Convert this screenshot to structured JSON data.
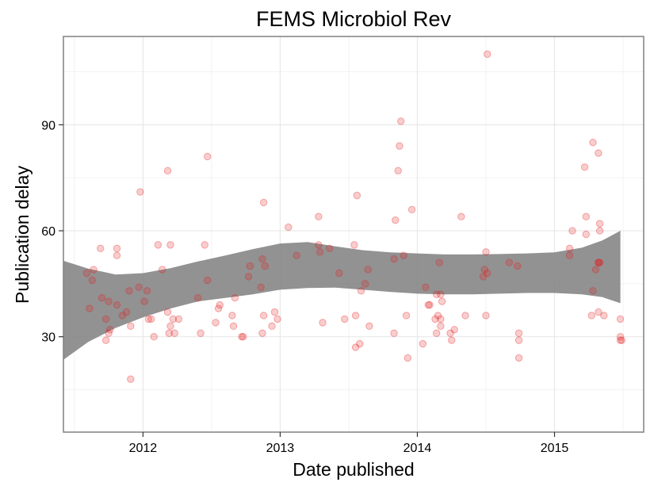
{
  "chart_data": {
    "type": "scatter",
    "title": "FEMS Microbiol Rev",
    "xlabel": "Date published",
    "ylabel": "Publication delay",
    "xlim": [
      2011.42,
      2015.65
    ],
    "ylim": [
      3,
      115
    ],
    "x_ticks": [
      2012,
      2013,
      2014,
      2015
    ],
    "x_tick_labels": [
      "2012",
      "2013",
      "2014",
      "2015"
    ],
    "y_ticks": [
      30,
      60,
      90
    ],
    "y_tick_labels": [
      "30",
      "60",
      "90"
    ],
    "grid": true,
    "point_color": "#e41a1c",
    "band_color": "#7f7f7f",
    "smooth_band": {
      "x": [
        2011.42,
        2011.6,
        2011.8,
        2012.0,
        2012.2,
        2012.4,
        2012.6,
        2012.8,
        2013.0,
        2013.2,
        2013.4,
        2013.6,
        2013.8,
        2014.0,
        2014.2,
        2014.4,
        2014.6,
        2014.8,
        2015.0,
        2015.2,
        2015.35,
        2015.48
      ],
      "upper": [
        51.5,
        49.3,
        47.6,
        48.0,
        49.4,
        51.3,
        53.0,
        54.8,
        56.4,
        56.8,
        55.6,
        54.5,
        53.9,
        53.6,
        53.3,
        53.3,
        53.4,
        53.6,
        53.9,
        55.2,
        57.3,
        60.0
      ],
      "lower": [
        23.5,
        28.5,
        32.5,
        35.5,
        38.0,
        40.0,
        41.0,
        42.0,
        43.3,
        43.8,
        43.9,
        43.3,
        42.7,
        42.2,
        42.0,
        42.0,
        42.2,
        42.4,
        42.4,
        42.0,
        41.2,
        39.5
      ]
    },
    "points": [
      {
        "x": 2011.59,
        "y": 48
      },
      {
        "x": 2011.61,
        "y": 38
      },
      {
        "x": 2011.63,
        "y": 46
      },
      {
        "x": 2011.64,
        "y": 49
      },
      {
        "x": 2011.69,
        "y": 55
      },
      {
        "x": 2011.7,
        "y": 41
      },
      {
        "x": 2011.73,
        "y": 29
      },
      {
        "x": 2011.73,
        "y": 35
      },
      {
        "x": 2011.75,
        "y": 40
      },
      {
        "x": 2011.75,
        "y": 31
      },
      {
        "x": 2011.76,
        "y": 32
      },
      {
        "x": 2011.81,
        "y": 55
      },
      {
        "x": 2011.81,
        "y": 53
      },
      {
        "x": 2011.81,
        "y": 39
      },
      {
        "x": 2011.85,
        "y": 36
      },
      {
        "x": 2011.88,
        "y": 37
      },
      {
        "x": 2011.9,
        "y": 43
      },
      {
        "x": 2011.91,
        "y": 18
      },
      {
        "x": 2011.91,
        "y": 33
      },
      {
        "x": 2011.97,
        "y": 44
      },
      {
        "x": 2011.98,
        "y": 71
      },
      {
        "x": 2012.01,
        "y": 40
      },
      {
        "x": 2012.03,
        "y": 43
      },
      {
        "x": 2012.04,
        "y": 35
      },
      {
        "x": 2012.06,
        "y": 35
      },
      {
        "x": 2012.08,
        "y": 30
      },
      {
        "x": 2012.11,
        "y": 56
      },
      {
        "x": 2012.14,
        "y": 49
      },
      {
        "x": 2012.18,
        "y": 37
      },
      {
        "x": 2012.18,
        "y": 77
      },
      {
        "x": 2012.19,
        "y": 31
      },
      {
        "x": 2012.2,
        "y": 56
      },
      {
        "x": 2012.2,
        "y": 33
      },
      {
        "x": 2012.22,
        "y": 35
      },
      {
        "x": 2012.23,
        "y": 31
      },
      {
        "x": 2012.26,
        "y": 35
      },
      {
        "x": 2012.4,
        "y": 41
      },
      {
        "x": 2012.42,
        "y": 31
      },
      {
        "x": 2012.45,
        "y": 56
      },
      {
        "x": 2012.47,
        "y": 81
      },
      {
        "x": 2012.47,
        "y": 46
      },
      {
        "x": 2012.53,
        "y": 34
      },
      {
        "x": 2012.55,
        "y": 38
      },
      {
        "x": 2012.56,
        "y": 39
      },
      {
        "x": 2012.65,
        "y": 36
      },
      {
        "x": 2012.66,
        "y": 33
      },
      {
        "x": 2012.67,
        "y": 41
      },
      {
        "x": 2012.72,
        "y": 30
      },
      {
        "x": 2012.73,
        "y": 30
      },
      {
        "x": 2012.77,
        "y": 47
      },
      {
        "x": 2012.78,
        "y": 50
      },
      {
        "x": 2012.86,
        "y": 44
      },
      {
        "x": 2012.87,
        "y": 52
      },
      {
        "x": 2012.87,
        "y": 31
      },
      {
        "x": 2012.88,
        "y": 68
      },
      {
        "x": 2012.88,
        "y": 36
      },
      {
        "x": 2012.89,
        "y": 50
      },
      {
        "x": 2012.94,
        "y": 33
      },
      {
        "x": 2012.96,
        "y": 37
      },
      {
        "x": 2012.98,
        "y": 35
      },
      {
        "x": 2013.06,
        "y": 61
      },
      {
        "x": 2013.12,
        "y": 53
      },
      {
        "x": 2013.28,
        "y": 64
      },
      {
        "x": 2013.28,
        "y": 56
      },
      {
        "x": 2013.29,
        "y": 54
      },
      {
        "x": 2013.31,
        "y": 34
      },
      {
        "x": 2013.36,
        "y": 55
      },
      {
        "x": 2013.43,
        "y": 48
      },
      {
        "x": 2013.47,
        "y": 35
      },
      {
        "x": 2013.54,
        "y": 56
      },
      {
        "x": 2013.55,
        "y": 27
      },
      {
        "x": 2013.55,
        "y": 36
      },
      {
        "x": 2013.56,
        "y": 70
      },
      {
        "x": 2013.58,
        "y": 28
      },
      {
        "x": 2013.59,
        "y": 43
      },
      {
        "x": 2013.62,
        "y": 45
      },
      {
        "x": 2013.64,
        "y": 49
      },
      {
        "x": 2013.65,
        "y": 33
      },
      {
        "x": 2013.83,
        "y": 31
      },
      {
        "x": 2013.83,
        "y": 52
      },
      {
        "x": 2013.84,
        "y": 63
      },
      {
        "x": 2013.86,
        "y": 77
      },
      {
        "x": 2013.87,
        "y": 84
      },
      {
        "x": 2013.88,
        "y": 91
      },
      {
        "x": 2013.9,
        "y": 53
      },
      {
        "x": 2013.92,
        "y": 36
      },
      {
        "x": 2013.93,
        "y": 24
      },
      {
        "x": 2013.96,
        "y": 66
      },
      {
        "x": 2014.04,
        "y": 28
      },
      {
        "x": 2014.06,
        "y": 44
      },
      {
        "x": 2014.08,
        "y": 39
      },
      {
        "x": 2014.09,
        "y": 39
      },
      {
        "x": 2014.13,
        "y": 35
      },
      {
        "x": 2014.14,
        "y": 31
      },
      {
        "x": 2014.14,
        "y": 42
      },
      {
        "x": 2014.15,
        "y": 36
      },
      {
        "x": 2014.16,
        "y": 51
      },
      {
        "x": 2014.17,
        "y": 33
      },
      {
        "x": 2014.17,
        "y": 35
      },
      {
        "x": 2014.17,
        "y": 42
      },
      {
        "x": 2014.18,
        "y": 40
      },
      {
        "x": 2014.24,
        "y": 31
      },
      {
        "x": 2014.25,
        "y": 29
      },
      {
        "x": 2014.27,
        "y": 32
      },
      {
        "x": 2014.32,
        "y": 64
      },
      {
        "x": 2014.35,
        "y": 36
      },
      {
        "x": 2014.48,
        "y": 47
      },
      {
        "x": 2014.49,
        "y": 49
      },
      {
        "x": 2014.5,
        "y": 54
      },
      {
        "x": 2014.5,
        "y": 36
      },
      {
        "x": 2014.51,
        "y": 48
      },
      {
        "x": 2014.51,
        "y": 110
      },
      {
        "x": 2014.67,
        "y": 51
      },
      {
        "x": 2014.73,
        "y": 50
      },
      {
        "x": 2014.74,
        "y": 31
      },
      {
        "x": 2014.74,
        "y": 29
      },
      {
        "x": 2014.74,
        "y": 24
      },
      {
        "x": 2015.11,
        "y": 53
      },
      {
        "x": 2015.11,
        "y": 55
      },
      {
        "x": 2015.13,
        "y": 60
      },
      {
        "x": 2015.22,
        "y": 78
      },
      {
        "x": 2015.23,
        "y": 64
      },
      {
        "x": 2015.23,
        "y": 59
      },
      {
        "x": 2015.27,
        "y": 36
      },
      {
        "x": 2015.28,
        "y": 43
      },
      {
        "x": 2015.28,
        "y": 85
      },
      {
        "x": 2015.3,
        "y": 49
      },
      {
        "x": 2015.32,
        "y": 51
      },
      {
        "x": 2015.32,
        "y": 51
      },
      {
        "x": 2015.33,
        "y": 51
      },
      {
        "x": 2015.32,
        "y": 37
      },
      {
        "x": 2015.32,
        "y": 82
      },
      {
        "x": 2015.33,
        "y": 60
      },
      {
        "x": 2015.33,
        "y": 62
      },
      {
        "x": 2015.36,
        "y": 36
      },
      {
        "x": 2015.48,
        "y": 35
      },
      {
        "x": 2015.48,
        "y": 30
      },
      {
        "x": 2015.48,
        "y": 29
      },
      {
        "x": 2015.49,
        "y": 29
      }
    ]
  }
}
